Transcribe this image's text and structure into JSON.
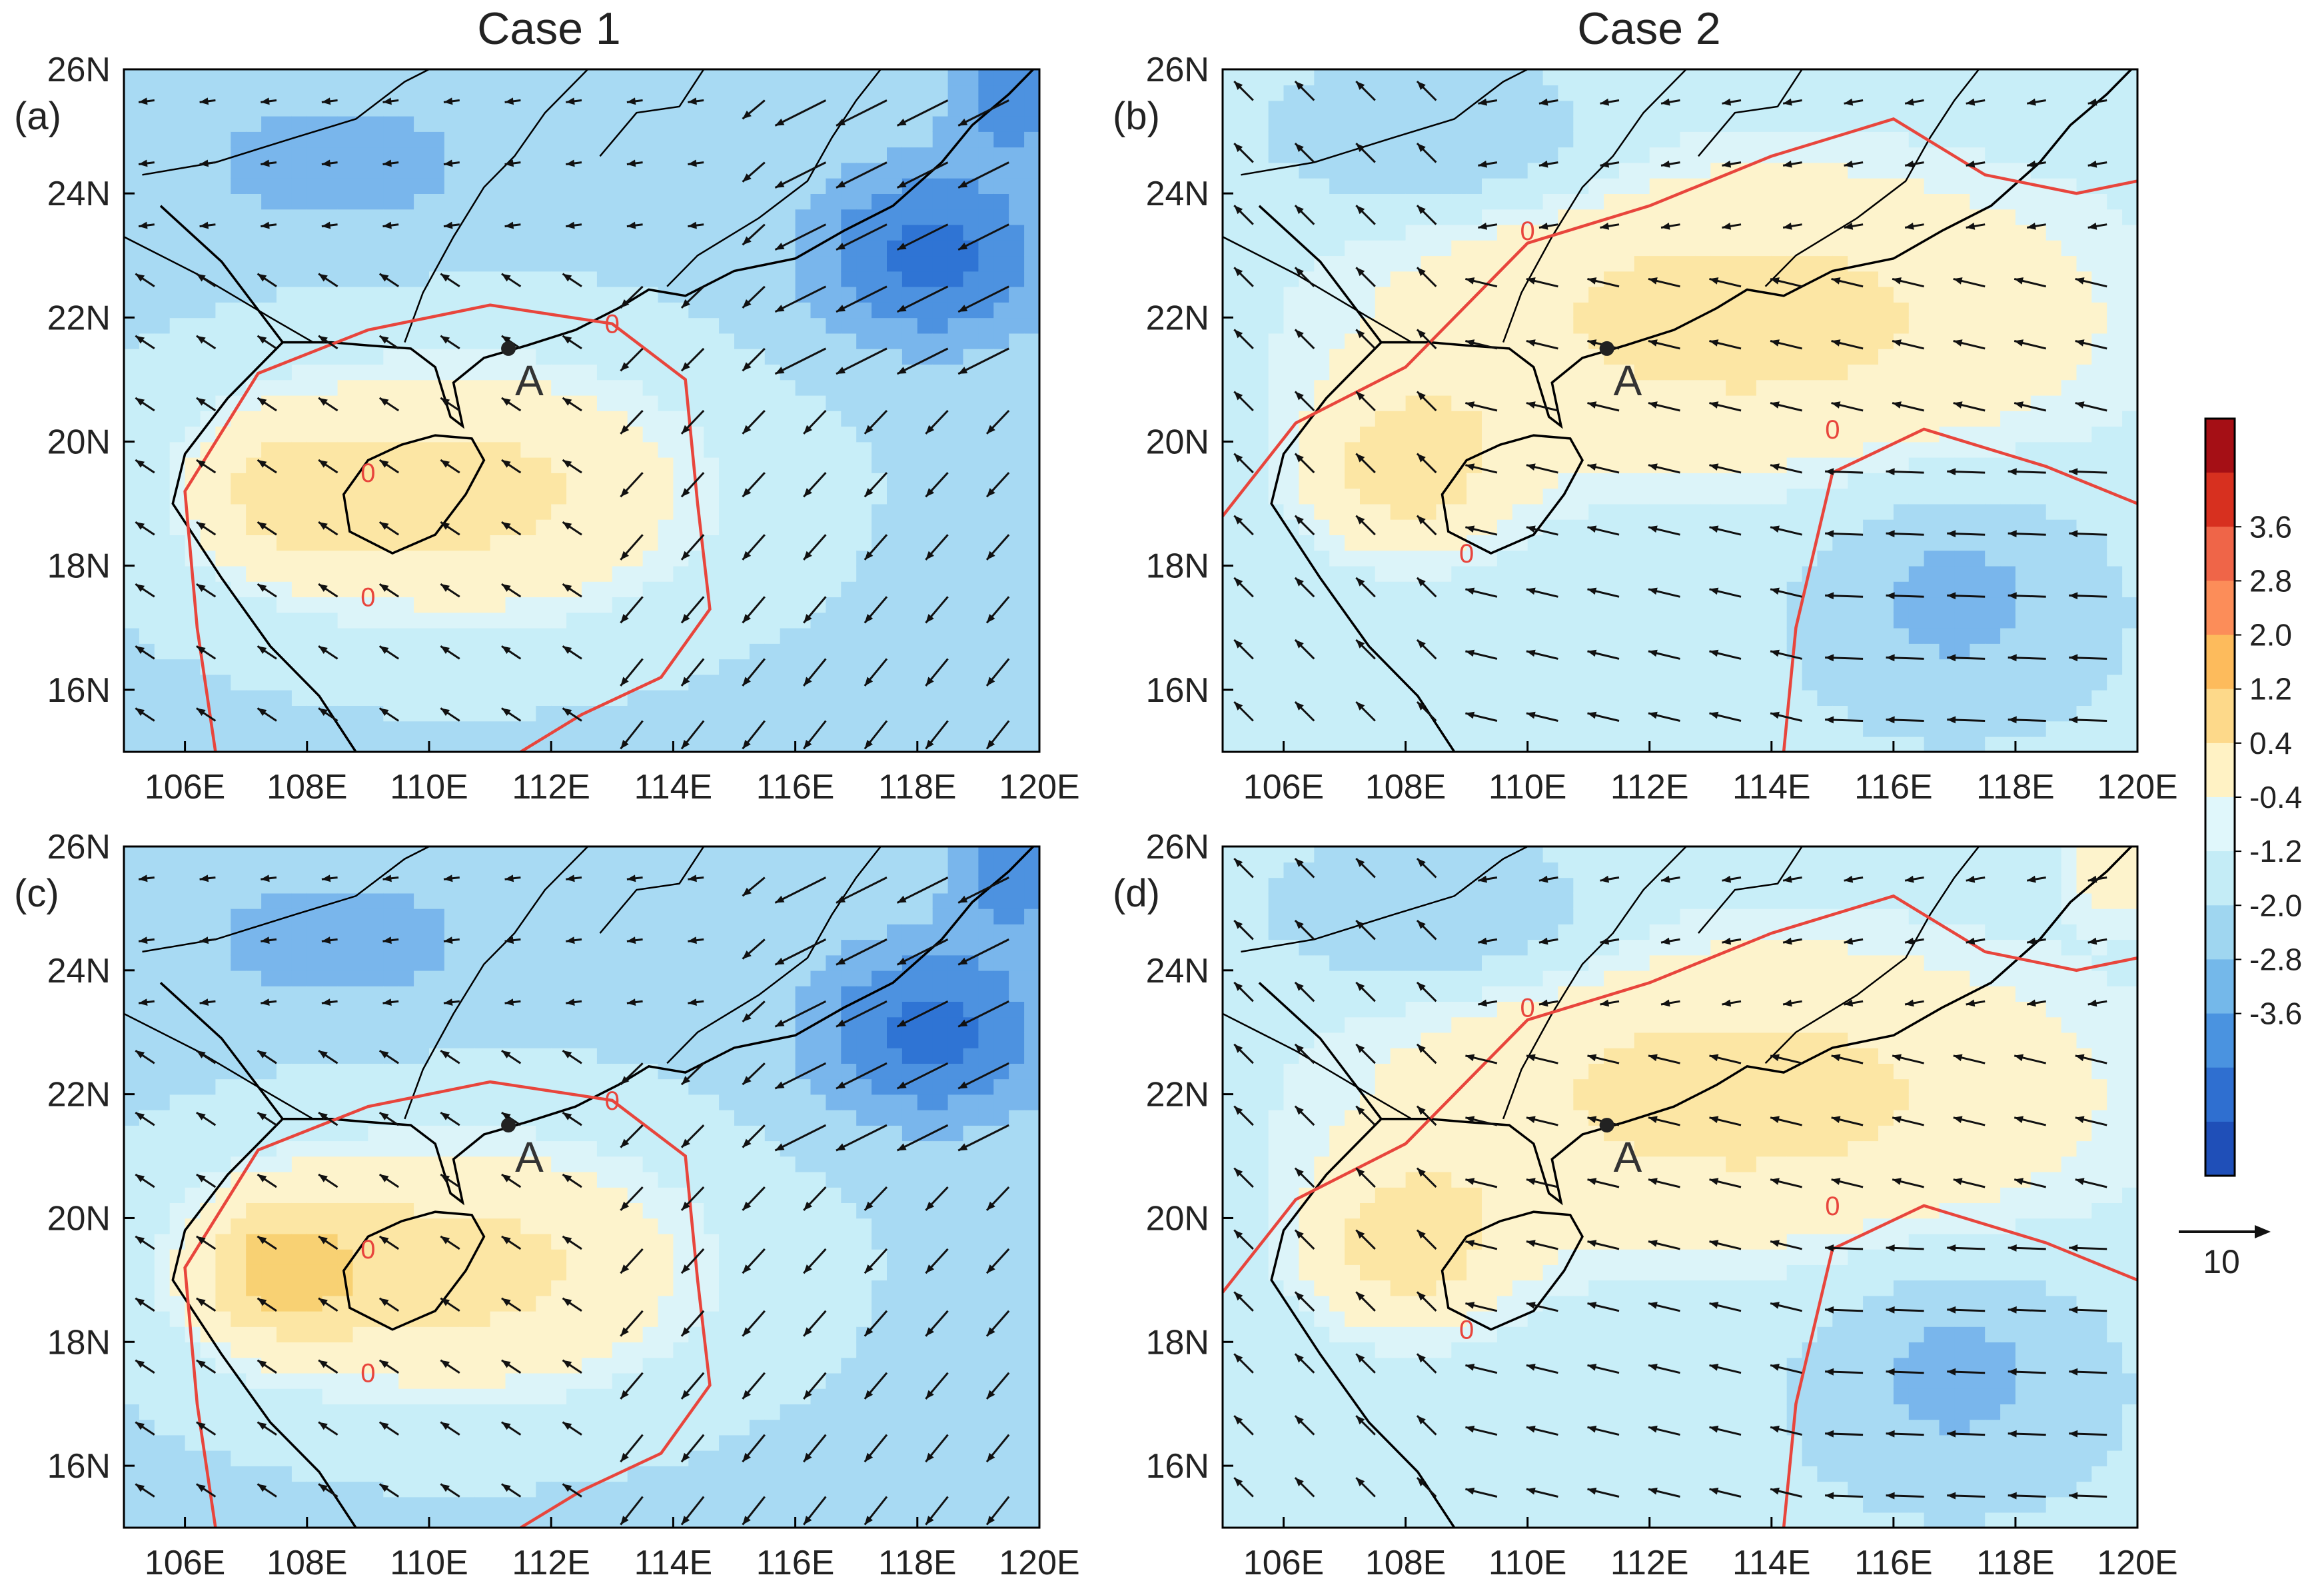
{
  "columns": [
    "Case 1",
    "Case 2"
  ],
  "panels": [
    {
      "label": "(a)",
      "variant": 1
    },
    {
      "label": "(b)",
      "variant": 2
    },
    {
      "label": "(c)",
      "variant": 3
    },
    {
      "label": "(d)",
      "variant": 4
    }
  ],
  "axes": {
    "lon_range": [
      105,
      120
    ],
    "lat_range": [
      15,
      26
    ],
    "lon_ticks": [
      "106E",
      "108E",
      "110E",
      "112E",
      "114E",
      "116E",
      "118E",
      "120E"
    ],
    "lon_tick_values": [
      106,
      108,
      110,
      112,
      114,
      116,
      118,
      120
    ],
    "lat_ticks": [
      "16N",
      "18N",
      "20N",
      "22N",
      "24N",
      "26N"
    ],
    "lat_tick_values": [
      16,
      18,
      20,
      22,
      24,
      26
    ]
  },
  "point_marker": {
    "label": "A",
    "lon": 111.3,
    "lat": 21.5
  },
  "zero_contour_label": "0",
  "colorbar": {
    "labels": [
      "3.6",
      "2.8",
      "2.0",
      "1.2",
      "0.4",
      "-0.4",
      "-1.2",
      "-2.0",
      "-2.8",
      "-3.6"
    ],
    "colors": [
      "#a50f15",
      "#d7301f",
      "#ef6548",
      "#fc8d59",
      "#fdbb5c",
      "#fdd98a",
      "#fff2c4",
      "#e0f7fb",
      "#c4ecf6",
      "#9fd6f0",
      "#74b8ea",
      "#4a93e0",
      "#2f6fd0",
      "#1f4fb8"
    ]
  },
  "vector_reference": {
    "value": "10"
  },
  "colors": {
    "zero_contour": "#e8453c",
    "positive": "#fdf2c4",
    "negative": "#d6f3f8",
    "border": "#000000"
  }
}
